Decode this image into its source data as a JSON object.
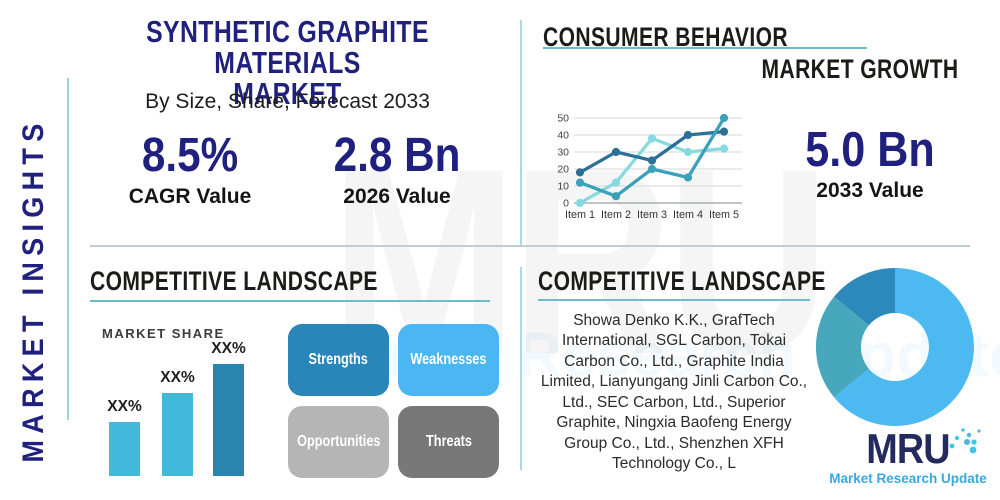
{
  "side_label": "MARKET INSIGHTS",
  "header": {
    "title_line1": "SYNTHETIC GRAPHITE MATERIALS",
    "title_line2": "MARKET",
    "subtitle": "By Size, Share, Forecast 2033"
  },
  "stats": {
    "cagr": {
      "value": "8.5%",
      "label": "CAGR Value"
    },
    "v2026": {
      "value": "2.8 Bn",
      "label": "2026 Value"
    },
    "v2033": {
      "value": "5.0 Bn",
      "label": "2033 Value"
    }
  },
  "consumer_behavior": {
    "title": "CONSUMER BEHAVIOR",
    "subtitle": "MARKET GROWTH"
  },
  "competitive_left": {
    "title": "COMPETITIVE LANDSCAPE"
  },
  "competitive_right": {
    "title": "COMPETITIVE LANDSCAPE",
    "companies": "Showa Denko K.K., GrafTech International, SGL Carbon, Tokai Carbon Co., Ltd., Graphite India Limited, Lianyungang Jinli Carbon Co., Ltd., SEC Carbon, Ltd., Superior Graphite, Ningxia Baofeng Energy Group Co., Ltd., Shenzhen XFH Technology Co., L"
  },
  "swot": [
    {
      "label": "Strengths",
      "color": "#2a86b8"
    },
    {
      "label": "Weaknesses",
      "color": "#4ab6f2"
    },
    {
      "label": "Opportunities",
      "color": "#b5b5b5"
    },
    {
      "label": "Threats",
      "color": "#787878"
    }
  ],
  "logo": {
    "name": "MRU",
    "tagline": "Market Research Update"
  },
  "watermark": {
    "big": "MRU",
    "small": "Market Research Update"
  },
  "colors": {
    "navy": "#20217e",
    "header_text": "#1b1b19",
    "underline_teal": "#6cbccd",
    "divider": "#bdced6",
    "rail": "#9ed1dc"
  },
  "chart_data": [
    {
      "id": "market_growth_line",
      "type": "line",
      "title": "MARKET GROWTH",
      "categories": [
        "Item 1",
        "Item 2",
        "Item 3",
        "Item 4",
        "Item 5"
      ],
      "series": [
        {
          "name": "dark-blue",
          "color": "#2d7095",
          "values": [
            18,
            30,
            25,
            40,
            42
          ]
        },
        {
          "name": "teal",
          "color": "#3aa2b8",
          "values": [
            12,
            4,
            20,
            15,
            50
          ]
        },
        {
          "name": "light-cyan",
          "color": "#87d9df",
          "values": [
            0,
            12,
            38,
            30,
            32
          ]
        }
      ],
      "ylim": [
        0,
        50
      ],
      "yticks": [
        0,
        10,
        20,
        30,
        40,
        50
      ],
      "grid": true,
      "legend": "none"
    },
    {
      "id": "market_share_bar",
      "type": "bar",
      "title": "MARKET SHARE",
      "categories": [
        "",
        "",
        ""
      ],
      "values": [
        24,
        37,
        50
      ],
      "labels": [
        "XX%",
        "XX%",
        "XX%"
      ],
      "bar_colors": [
        "#44b8da",
        "#44b8da",
        "#2b84ae"
      ],
      "ylabel": "",
      "xlabel": ""
    },
    {
      "id": "competitor_share_donut",
      "type": "pie",
      "donut": true,
      "slices": [
        {
          "name": "light-blue",
          "value": 64,
          "color": "#4cbaf0"
        },
        {
          "name": "teal",
          "value": 22,
          "color": "#47a7bc"
        },
        {
          "name": "dark-blue",
          "value": 14,
          "color": "#2d88bb"
        }
      ]
    }
  ]
}
